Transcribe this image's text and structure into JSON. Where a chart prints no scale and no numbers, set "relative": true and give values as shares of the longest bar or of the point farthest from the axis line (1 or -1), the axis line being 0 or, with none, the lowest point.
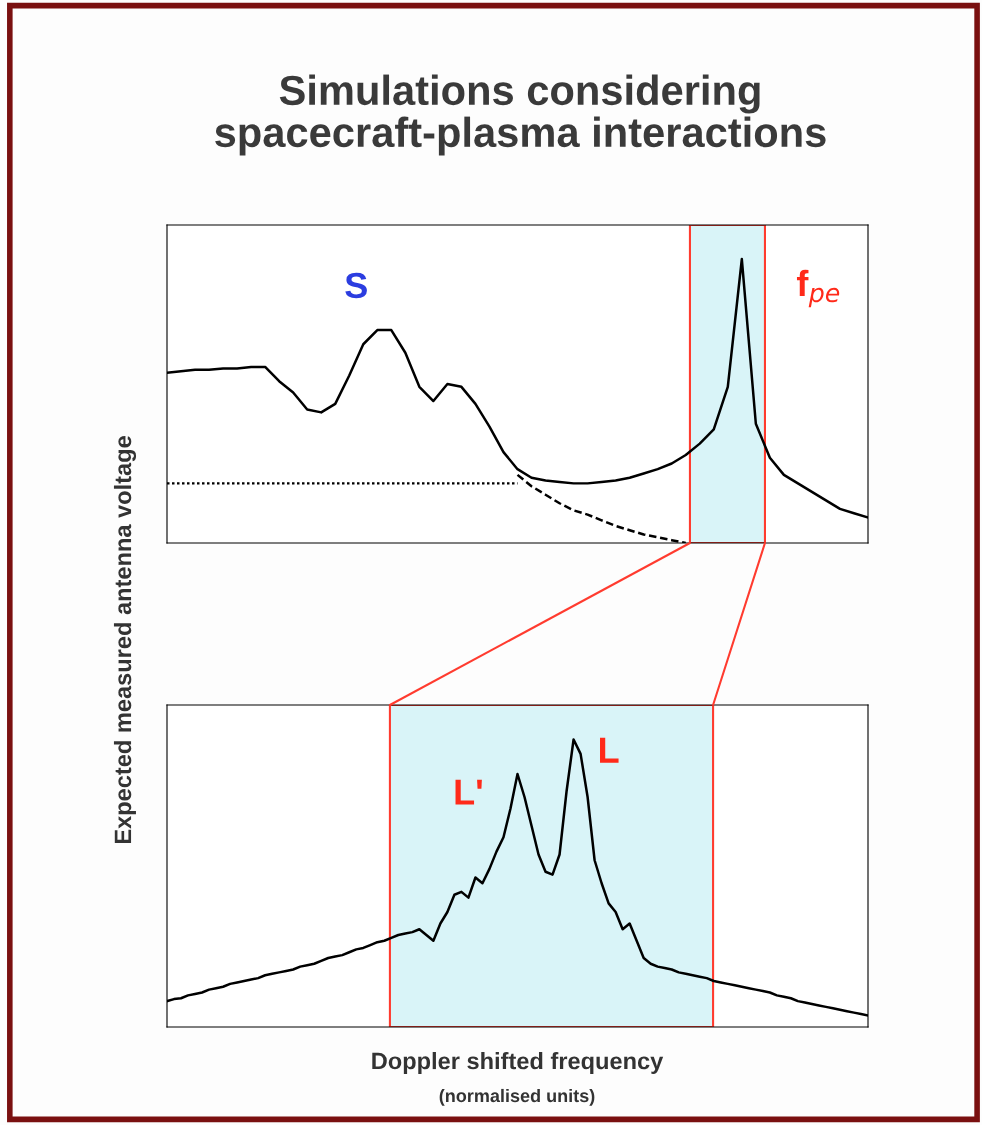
{
  "chart_data": [
    {
      "type": "line",
      "title": "Simulations considering\nspacecraft-plasma interactions",
      "ylabel": "Expected measured antenna voltage",
      "relative": true,
      "categories": [
        null,
        null,
        null,
        null,
        null,
        null,
        null,
        null,
        null,
        null,
        null,
        null,
        null,
        null,
        null,
        null,
        null,
        null,
        null,
        null,
        null,
        null,
        null,
        null,
        null,
        null,
        null,
        null,
        null,
        null,
        null,
        null,
        null,
        null,
        null,
        null,
        null,
        null,
        null,
        null,
        null,
        null,
        null,
        null,
        null,
        null,
        null,
        null,
        null,
        null,
        null
      ],
      "series": [
        {
          "color": "#000000",
          "line_style": "solid",
          "values": [
            0.6,
            0.605,
            0.61,
            0.61,
            0.615,
            0.615,
            0.62,
            0.62,
            0.57,
            0.53,
            0.47,
            0.46,
            0.49,
            0.59,
            0.7,
            0.75,
            0.75,
            0.67,
            0.55,
            0.5,
            0.56,
            0.55,
            0.49,
            0.41,
            0.32,
            0.26,
            0.23,
            0.22,
            0.215,
            0.21,
            0.21,
            0.215,
            0.22,
            0.23,
            0.245,
            0.26,
            0.28,
            0.31,
            0.35,
            0.4,
            0.55,
            1,
            0.42,
            0.3,
            0.24,
            0.21,
            0.18,
            0.15,
            0.12,
            0.105,
            0.09
          ]
        },
        {
          "color": "#000000",
          "line_style": "dotted",
          "values": [
            0.21,
            0.21,
            0.21,
            0.21,
            0.21,
            0.21,
            0.21,
            0.21,
            0.21,
            0.21,
            0.21,
            0.21,
            0.21,
            0.21,
            0.21,
            0.21,
            0.21,
            0.21,
            0.21,
            0.21,
            0.21,
            0.21,
            0.21,
            0.21,
            0.21,
            0.21,
            null,
            null,
            null,
            null,
            null,
            null,
            null,
            null,
            null,
            null,
            null,
            null,
            null,
            null,
            null,
            null,
            null,
            null,
            null,
            null,
            null,
            null,
            null,
            null,
            null
          ]
        },
        {
          "color": "#000000",
          "line_style": "dashed",
          "values": [
            null,
            null,
            null,
            null,
            null,
            null,
            null,
            null,
            null,
            null,
            null,
            null,
            null,
            null,
            null,
            null,
            null,
            null,
            null,
            null,
            null,
            null,
            null,
            null,
            null,
            0.24,
            0.2,
            0.17,
            0.14,
            0.115,
            0.1,
            0.08,
            0.06,
            0.045,
            0.03,
            0.02,
            0.01,
            0,
            null,
            null,
            null,
            null,
            null,
            null,
            null,
            null,
            null,
            null,
            null,
            null,
            null
          ]
        }
      ],
      "annotations": [
        "S",
        "f$_{pe}$"
      ]
    },
    {
      "type": "line",
      "xlabel": "Doppler shifted frequency",
      "relative": true,
      "categories": [
        null,
        null,
        null,
        null,
        null,
        null,
        null,
        null,
        null,
        null,
        null,
        null,
        null,
        null,
        null,
        null,
        null,
        null,
        null,
        null,
        null,
        null,
        null,
        null,
        null,
        null,
        null,
        null,
        null,
        null,
        null,
        null,
        null,
        null,
        null,
        null,
        null,
        null,
        null,
        null,
        null,
        null,
        null,
        null,
        null,
        null,
        null,
        null,
        null,
        null,
        null,
        null,
        null,
        null,
        null,
        null,
        null,
        null,
        null,
        null,
        null,
        null,
        null,
        null,
        null,
        null,
        null,
        null,
        null,
        null,
        null,
        null,
        null,
        null,
        null,
        null,
        null,
        null,
        null,
        null,
        null,
        null,
        null,
        null,
        null,
        null,
        null,
        null,
        null,
        null,
        null,
        null,
        null,
        null,
        null,
        null,
        null,
        null,
        null,
        null,
        null
      ],
      "series": [
        {
          "color": "#000000",
          "line_style": "solid",
          "values": [
            0.09,
            0.097,
            0.1,
            0.11,
            0.115,
            0.12,
            0.13,
            0.135,
            0.14,
            0.15,
            0.155,
            0.16,
            0.165,
            0.17,
            0.18,
            0.185,
            0.19,
            0.195,
            0.2,
            0.21,
            0.215,
            0.22,
            0.23,
            0.24,
            0.245,
            0.25,
            0.26,
            0.27,
            0.275,
            0.285,
            0.295,
            0.3,
            0.31,
            0.32,
            0.325,
            0.33,
            0.34,
            0.32,
            0.3,
            0.36,
            0.4,
            0.46,
            0.47,
            0.45,
            0.52,
            0.5,
            0.55,
            0.61,
            0.66,
            0.76,
            0.88,
            0.8,
            0.7,
            0.6,
            0.54,
            0.53,
            0.6,
            0.82,
            1,
            0.95,
            0.8,
            0.58,
            0.5,
            0.43,
            0.4,
            0.34,
            0.36,
            0.3,
            0.24,
            0.22,
            0.21,
            0.205,
            0.2,
            0.19,
            0.185,
            0.18,
            0.175,
            0.17,
            0.16,
            0.155,
            0.15,
            0.145,
            0.14,
            0.135,
            0.13,
            0.125,
            0.12,
            0.11,
            0.105,
            0.1,
            0.09,
            0.085,
            0.08,
            0.075,
            0.07,
            0.065,
            0.06,
            0.055,
            0.05,
            0.045,
            0.04
          ]
        }
      ],
      "annotations": [
        "L'",
        "L",
        "(normalised units)"
      ]
    }
  ]
}
